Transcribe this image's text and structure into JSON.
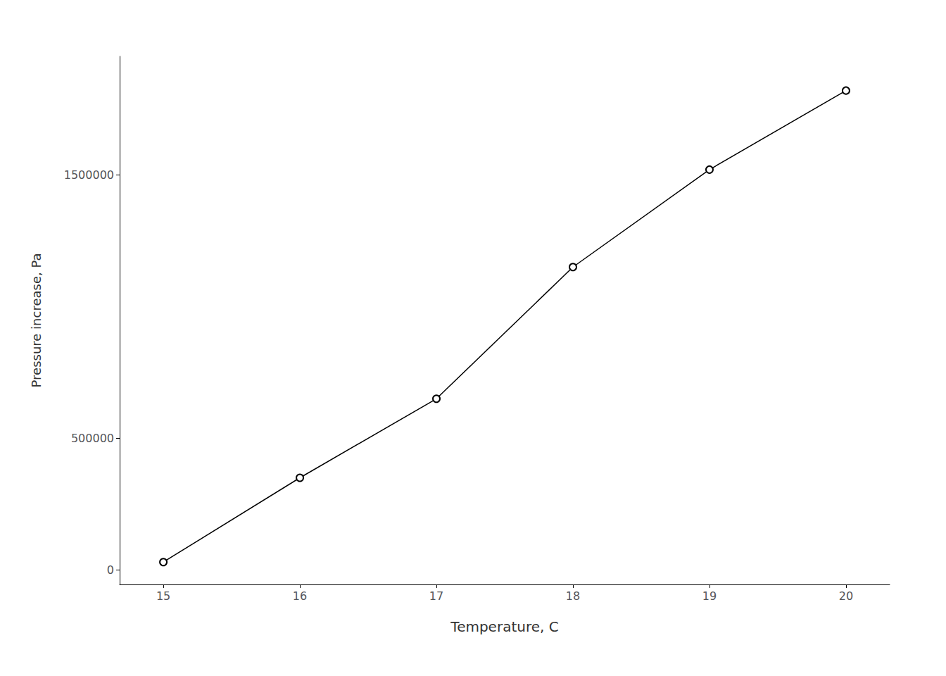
{
  "chart_data": {
    "type": "line",
    "x": [
      15,
      16,
      17,
      18,
      19,
      20
    ],
    "values": [
      30000,
      350000,
      650000,
      1150000,
      1520000,
      1820000
    ],
    "color": "#000000",
    "marker": "circle",
    "xlabel": "Temperature, C",
    "ylabel": "Pressure increase, Pa",
    "xlim": [
      14.68,
      20.32
    ],
    "ylim": [
      -55000,
      1950000
    ],
    "xticks": [
      15,
      16,
      17,
      18,
      19,
      20
    ],
    "yticks": [
      0,
      500000,
      1500000
    ],
    "grid": false
  }
}
